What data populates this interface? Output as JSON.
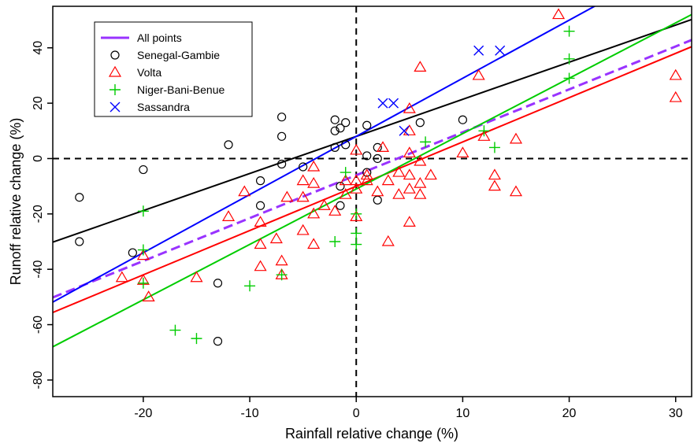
{
  "chart_data": {
    "type": "scatter",
    "xlabel": "Rainfall relative change (%)",
    "ylabel": "Runoff relative change (%)",
    "xlim": [
      -28.5,
      31.5
    ],
    "ylim": [
      -86,
      55
    ],
    "xticks": [
      -20,
      -10,
      0,
      10,
      20,
      30
    ],
    "yticks": [
      -80,
      -60,
      -40,
      -20,
      0,
      20,
      40
    ],
    "reference_lines": {
      "x": 0,
      "y": 0,
      "style": "dashed"
    },
    "legend_position": "top-left",
    "series": [
      {
        "name": "Senegal-Gambie",
        "marker": "circle",
        "color": "#000000",
        "points": [
          [
            -26,
            -14
          ],
          [
            -26,
            -30
          ],
          [
            -20,
            -4
          ],
          [
            -21,
            -34
          ],
          [
            -12,
            5
          ],
          [
            -13,
            -45
          ],
          [
            -13,
            -66
          ],
          [
            -9,
            -8
          ],
          [
            -9,
            -17
          ],
          [
            -7,
            15
          ],
          [
            -7,
            8
          ],
          [
            -7,
            -2
          ],
          [
            -5,
            -3
          ],
          [
            -2,
            14
          ],
          [
            -2,
            10
          ],
          [
            -1.5,
            11
          ],
          [
            -1,
            13
          ],
          [
            -1.5,
            -10
          ],
          [
            -1.5,
            -17
          ],
          [
            -2,
            4
          ],
          [
            -1,
            5
          ],
          [
            1,
            12
          ],
          [
            1,
            1
          ],
          [
            1,
            -5
          ],
          [
            2,
            4
          ],
          [
            2,
            0
          ],
          [
            2,
            -15
          ],
          [
            6,
            13
          ],
          [
            10,
            14
          ]
        ]
      },
      {
        "name": "Volta",
        "marker": "triangle",
        "color": "#ff0000",
        "points": [
          [
            -22,
            -43
          ],
          [
            -20,
            -35
          ],
          [
            -20,
            -44
          ],
          [
            -19.5,
            -50
          ],
          [
            -15,
            -43
          ],
          [
            -12,
            -21
          ],
          [
            -10.5,
            -12
          ],
          [
            -9,
            -23
          ],
          [
            -9,
            -31
          ],
          [
            -9,
            -39
          ],
          [
            -7.5,
            -29
          ],
          [
            -7,
            -37
          ],
          [
            -7,
            -42
          ],
          [
            -6.5,
            -14
          ],
          [
            -5,
            -8
          ],
          [
            -5,
            -14
          ],
          [
            -5,
            -26
          ],
          [
            -4,
            -3
          ],
          [
            -4,
            -9
          ],
          [
            -4,
            -20
          ],
          [
            -4,
            -31
          ],
          [
            -3,
            -17
          ],
          [
            -2,
            -19
          ],
          [
            -1,
            -8
          ],
          [
            -1,
            -13
          ],
          [
            0,
            3
          ],
          [
            0,
            -8
          ],
          [
            0,
            -11
          ],
          [
            0,
            -21
          ],
          [
            1,
            -6
          ],
          [
            1,
            -8
          ],
          [
            2,
            -12
          ],
          [
            2.5,
            4
          ],
          [
            3,
            -8
          ],
          [
            3,
            -30
          ],
          [
            4,
            -5
          ],
          [
            4,
            -13
          ],
          [
            5,
            18
          ],
          [
            5,
            10
          ],
          [
            5,
            2
          ],
          [
            5,
            -6
          ],
          [
            5,
            -11
          ],
          [
            5,
            -23
          ],
          [
            6,
            33
          ],
          [
            6,
            -1
          ],
          [
            6,
            -9
          ],
          [
            6,
            -13
          ],
          [
            7,
            -6
          ],
          [
            10,
            2
          ],
          [
            11.5,
            30
          ],
          [
            12,
            8
          ],
          [
            13,
            -6
          ],
          [
            13,
            -10
          ],
          [
            15,
            7
          ],
          [
            15,
            -12
          ],
          [
            19,
            52
          ],
          [
            30,
            30
          ],
          [
            30,
            22
          ]
        ]
      },
      {
        "name": "Niger-Bani-Benue",
        "marker": "plus",
        "color": "#00cc00",
        "points": [
          [
            -20,
            -19
          ],
          [
            -20,
            -33
          ],
          [
            -20,
            -45
          ],
          [
            -17,
            -62
          ],
          [
            -15,
            -65
          ],
          [
            -10,
            -46
          ],
          [
            -7,
            -42
          ],
          [
            -2,
            -30
          ],
          [
            -1,
            -5
          ],
          [
            0,
            -20
          ],
          [
            0,
            -27
          ],
          [
            0,
            -31
          ],
          [
            6.5,
            6
          ],
          [
            12,
            10
          ],
          [
            13,
            4
          ],
          [
            20,
            46
          ],
          [
            20,
            36
          ],
          [
            20,
            29
          ]
        ]
      },
      {
        "name": "Sassandra",
        "marker": "cross",
        "color": "#0000ff",
        "points": [
          [
            2.5,
            20
          ],
          [
            3.5,
            20
          ],
          [
            4.5,
            10
          ],
          [
            11.5,
            39
          ],
          [
            13.5,
            39
          ]
        ]
      }
    ],
    "fit_lines": [
      {
        "name": "All points",
        "color": "#9933ff",
        "style": "dashed",
        "intercept": -6,
        "slope": 1.55
      },
      {
        "series": "Senegal-Gambie",
        "color": "#000000",
        "style": "solid",
        "intercept": 8,
        "slope": 1.34
      },
      {
        "series": "Volta",
        "color": "#ff0000",
        "style": "solid",
        "intercept": -10,
        "slope": 1.6
      },
      {
        "series": "Niger-Bani-Benue",
        "color": "#00cc00",
        "style": "solid",
        "intercept": -11,
        "slope": 2.0
      },
      {
        "series": "Sassandra",
        "color": "#0000ff",
        "style": "solid",
        "intercept": 8,
        "slope": 2.1
      }
    ],
    "legend": [
      {
        "label": "All points",
        "color": "#9933ff",
        "symbol": "line"
      },
      {
        "label": "Senegal-Gambie",
        "color": "#000000",
        "symbol": "circle"
      },
      {
        "label": "Volta",
        "color": "#ff0000",
        "symbol": "triangle"
      },
      {
        "label": "Niger-Bani-Benue",
        "color": "#00cc00",
        "symbol": "plus"
      },
      {
        "label": "Sassandra",
        "color": "#0000ff",
        "symbol": "cross"
      }
    ]
  }
}
